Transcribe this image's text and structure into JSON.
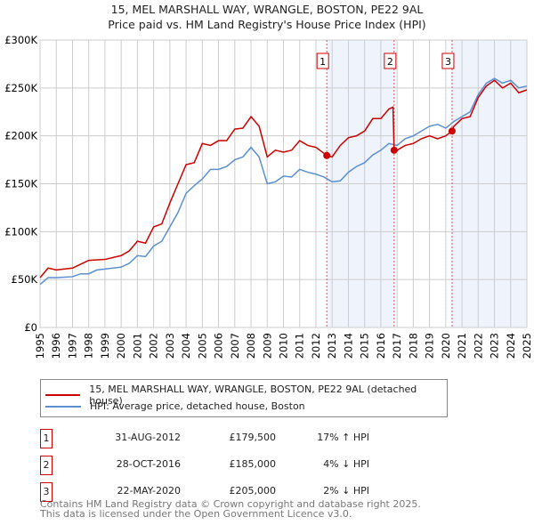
{
  "chart_data": {
    "type": "line",
    "title": "15, MEL MARSHALL WAY, WRANGLE, BOSTON, PE22 9AL",
    "subtitle": "Price paid vs. HM Land Registry's House Price Index (HPI)",
    "xlim": [
      1995,
      2025
    ],
    "ylim": [
      0,
      300000
    ],
    "yticks": [
      {
        "v": 0,
        "label": "£0"
      },
      {
        "v": 50000,
        "label": "£50K"
      },
      {
        "v": 100000,
        "label": "£100K"
      },
      {
        "v": 150000,
        "label": "£150K"
      },
      {
        "v": 200000,
        "label": "£200K"
      },
      {
        "v": 250000,
        "label": "£250K"
      },
      {
        "v": 300000,
        "label": "£300K"
      }
    ],
    "xticks": [
      1995,
      1996,
      1997,
      1998,
      1999,
      2000,
      2001,
      2002,
      2003,
      2004,
      2005,
      2006,
      2007,
      2008,
      2009,
      2010,
      2011,
      2012,
      2013,
      2014,
      2015,
      2016,
      2017,
      2018,
      2019,
      2020,
      2021,
      2022,
      2023,
      2024,
      2025
    ],
    "grid": true,
    "series": [
      {
        "name": "15, MEL MARSHALL WAY, WRANGLE, BOSTON, PE22 9AL (detached house)",
        "color": "#cc0000",
        "x": [
          1995,
          1995.5,
          1996,
          1997,
          1997.5,
          1998,
          1999,
          2000,
          2000.5,
          2001,
          2001.5,
          2002,
          2002.5,
          2003,
          2003.5,
          2004,
          2004.5,
          2005,
          2005.5,
          2006,
          2006.5,
          2007,
          2007.5,
          2008,
          2008.5,
          2009,
          2009.5,
          2010,
          2010.5,
          2011,
          2011.5,
          2012,
          2012.67,
          2013,
          2013.5,
          2014,
          2014.5,
          2015,
          2015.5,
          2016,
          2016.5,
          2016.75,
          2016.82,
          2017,
          2017.5,
          2018,
          2018.5,
          2019,
          2019.5,
          2020,
          2020.39,
          2020.5,
          2021,
          2021.5,
          2022,
          2022.5,
          2023,
          2023.5,
          2024,
          2024.5,
          2025
        ],
        "y": [
          52,
          62,
          60,
          62,
          66,
          70,
          71,
          75,
          80,
          90,
          88,
          105,
          108,
          130,
          150,
          170,
          172,
          192,
          190,
          195,
          195,
          207,
          208,
          220,
          210,
          178,
          185,
          183,
          185,
          195,
          190,
          188,
          179.5,
          178,
          190,
          198,
          200,
          205,
          218,
          218,
          228,
          230,
          185,
          185,
          190,
          192,
          197,
          200,
          197,
          200,
          205,
          210,
          218,
          220,
          240,
          252,
          258,
          250,
          255,
          245,
          248
        ]
      },
      {
        "name": "HPI: Average price, detached house, Boston",
        "color": "#5b8fd0",
        "x": [
          1995,
          1995.5,
          1996,
          1997,
          1997.5,
          1998,
          1998.5,
          1999,
          2000,
          2000.5,
          2001,
          2001.5,
          2002,
          2002.5,
          2003,
          2003.5,
          2004,
          2004.5,
          2005,
          2005.5,
          2006,
          2006.5,
          2007,
          2007.5,
          2008,
          2008.5,
          2009,
          2009.5,
          2010,
          2010.5,
          2011,
          2011.5,
          2012,
          2012.5,
          2013,
          2013.5,
          2014,
          2014.5,
          2015,
          2015.5,
          2016,
          2016.5,
          2017,
          2017.5,
          2018,
          2018.5,
          2019,
          2019.5,
          2020,
          2020.5,
          2021,
          2021.5,
          2022,
          2022.5,
          2023,
          2023.5,
          2024,
          2024.5,
          2025
        ],
        "y": [
          45,
          52,
          52,
          53,
          56,
          56,
          60,
          61,
          63,
          67,
          75,
          74,
          85,
          90,
          105,
          120,
          140,
          148,
          155,
          165,
          165,
          168,
          175,
          178,
          188,
          178,
          150,
          152,
          158,
          157,
          165,
          162,
          160,
          157,
          152,
          153,
          162,
          168,
          172,
          180,
          185,
          192,
          190,
          197,
          200,
          205,
          210,
          212,
          208,
          215,
          220,
          225,
          243,
          255,
          260,
          255,
          258,
          250,
          252
        ]
      }
    ],
    "y_unit": "thousands GBP",
    "sales": [
      {
        "id": "1",
        "x": 2012.67,
        "price": 179.5,
        "date": "31-AUG-2012",
        "price_label": "£179,500",
        "hpi": "17% ↑ HPI"
      },
      {
        "id": "2",
        "x": 2016.82,
        "price": 185,
        "date": "28-OCT-2016",
        "price_label": "£185,000",
        "hpi": "4% ↓ HPI"
      },
      {
        "id": "3",
        "x": 2020.39,
        "price": 205,
        "date": "22-MAY-2020",
        "price_label": "£205,000",
        "hpi": "2% ↓ HPI"
      }
    ],
    "legend_placement": "bottom"
  },
  "footer": [
    "Contains HM Land Registry data © Crown copyright and database right 2025.",
    "This data is licensed under the Open Government Licence v3.0."
  ]
}
